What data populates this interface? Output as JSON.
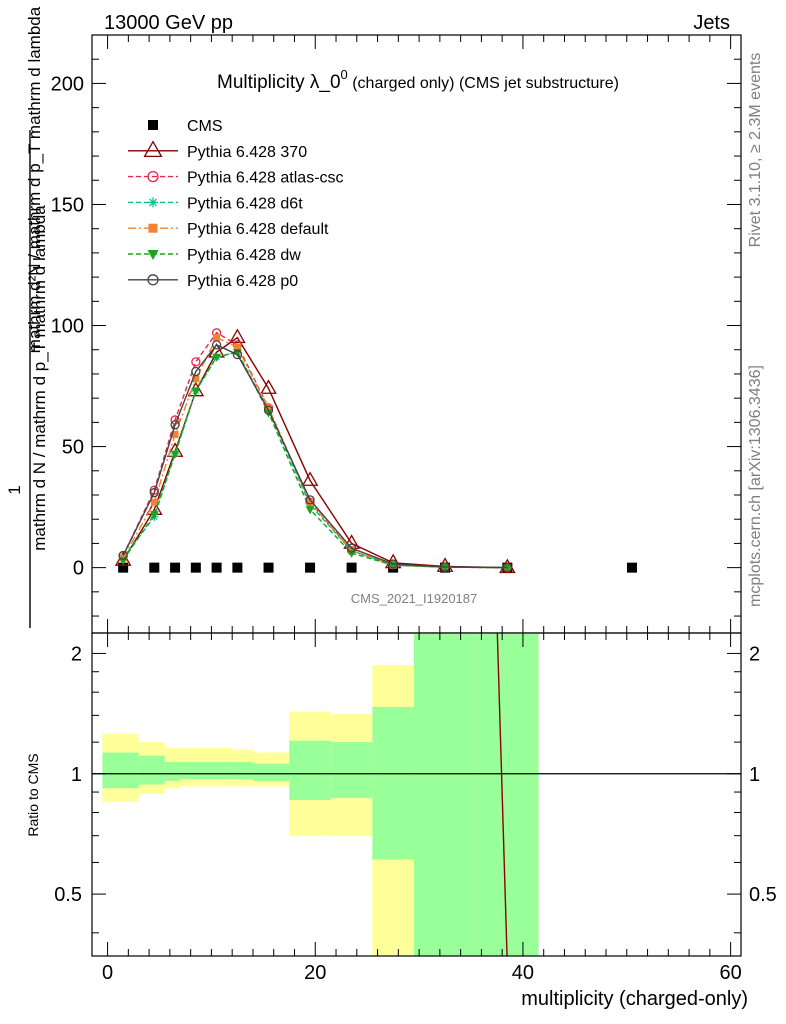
{
  "header": {
    "left": "13000 GeV pp",
    "right": "Jets"
  },
  "side_labels": {
    "rivet": "Rivet 3.1.10, ≥ 2.3M events",
    "mcplots": "mcplots.cern.ch [arXiv:1306.3436]"
  },
  "chart_data": [
    {
      "type": "line",
      "title": "Multiplicity λ_0⁰ (charged only) (CMS jet substructure)",
      "title_main": "Multiplicity λ_0",
      "title_sup": "0",
      "title_rest": " (charged only) (CMS jet substructure)",
      "analysis_label": "CMS_2021_I1920187",
      "xlabel": "multiplicity (charged-only)",
      "ylabel_numerator": "1",
      "ylabel_denominator": "mathrm d N / mathrm d p_T mathrm d lambda",
      "ylabel_inner": "mathrm d²N / mathrm d p_T mathrm d lambda",
      "ylabel_full": "(1 / mathrm d N / mathrm d p_T mathrm d lambda) · mathrm d²N / mathrm d p_T mathrm d lambda",
      "xlim": [
        -1.5,
        61
      ],
      "ylim": [
        -27,
        220
      ],
      "xticks": [
        0,
        20,
        40,
        60
      ],
      "yticks": [
        0,
        50,
        100,
        150,
        200
      ],
      "legend_position": "top-left",
      "series": [
        {
          "name": "CMS",
          "style": "data",
          "color": "#000000",
          "marker": "filled-square",
          "x": [
            1.5,
            4.5,
            6.5,
            8.5,
            10.5,
            12.5,
            15.5,
            19.5,
            23.5,
            27.5,
            32.5,
            38.5,
            50.5
          ],
          "y": [
            0,
            0,
            0,
            0,
            0,
            0,
            0,
            0,
            0,
            0,
            0,
            0,
            0
          ]
        },
        {
          "name": "Pythia 6.428 370",
          "color": "#8b0000",
          "dash": "solid",
          "marker": "open-triangle",
          "x": [
            1.5,
            4.5,
            6.5,
            8.5,
            10.5,
            12.5,
            15.5,
            19.5,
            23.5,
            27.5,
            32.5,
            38.5
          ],
          "y": [
            3,
            24,
            48,
            73,
            89,
            95,
            74,
            36,
            10,
            2,
            0.5,
            0
          ]
        },
        {
          "name": "Pythia 6.428 atlas-csc",
          "color": "#e8264e",
          "dash": "dashed",
          "marker": "open-circle",
          "x": [
            1.5,
            4.5,
            6.5,
            8.5,
            10.5,
            12.5,
            15.5,
            19.5,
            23.5,
            27.5,
            32.5,
            38.5
          ],
          "y": [
            5,
            32,
            61,
            85,
            97,
            92,
            66,
            27,
            7,
            1.2,
            0.2,
            0
          ]
        },
        {
          "name": "Pythia 6.428 d6t",
          "color": "#00c08f",
          "dash": "dashed",
          "marker": "asterisk",
          "x": [
            1.5,
            4.5,
            6.5,
            8.5,
            10.5,
            12.5,
            15.5,
            19.5,
            23.5,
            27.5,
            32.5,
            38.5
          ],
          "y": [
            4,
            21,
            47,
            73,
            87,
            89,
            65,
            26,
            7,
            1,
            0.2,
            0
          ]
        },
        {
          "name": "Pythia 6.428 default",
          "color": "#f58231",
          "dash": "dashdot",
          "marker": "filled-square",
          "x": [
            1.5,
            4.5,
            6.5,
            8.5,
            10.5,
            12.5,
            15.5,
            19.5,
            23.5,
            27.5,
            32.5,
            38.5
          ],
          "y": [
            4,
            27,
            55,
            78,
            95,
            91,
            66,
            27,
            7,
            1,
            0.2,
            0
          ]
        },
        {
          "name": "Pythia 6.428 dw",
          "color": "#1aa51a",
          "dash": "dashed",
          "marker": "filled-triangle-down",
          "x": [
            1.5,
            4.5,
            6.5,
            8.5,
            10.5,
            12.5,
            15.5,
            19.5,
            23.5,
            27.5,
            32.5,
            38.5
          ],
          "y": [
            3,
            22,
            47,
            73,
            87,
            89,
            64,
            24,
            6,
            1,
            0.2,
            0
          ]
        },
        {
          "name": "Pythia 6.428 p0",
          "color": "#444444",
          "dash": "solid",
          "marker": "open-circle",
          "x": [
            1.5,
            4.5,
            6.5,
            8.5,
            10.5,
            12.5,
            15.5,
            19.5,
            23.5,
            27.5,
            32.5,
            38.5
          ],
          "y": [
            5,
            31,
            59,
            81,
            92,
            88,
            65,
            28,
            8,
            1.5,
            0.3,
            0
          ]
        }
      ]
    },
    {
      "type": "area",
      "ylabel": "Ratio to CMS",
      "xlim": [
        -1.5,
        61
      ],
      "ylim": [
        0.35,
        2.25
      ],
      "yscale": "log",
      "xticks": [
        0,
        20,
        40,
        60
      ],
      "yticks": [
        0.5,
        1,
        2
      ],
      "reference_line": 1,
      "bands": {
        "bins_lo": [
          -0.5,
          3,
          5.5,
          7,
          12,
          14,
          17.5,
          21.5,
          25.5,
          29.5,
          35.5
        ],
        "bins_hi": [
          3,
          5.5,
          7,
          12,
          14,
          17.5,
          21.5,
          25.5,
          29.5,
          35.5,
          41.5
        ],
        "syst_lo": [
          0.85,
          0.89,
          0.92,
          0.93,
          0.93,
          0.93,
          0.7,
          0.7,
          0.35,
          0.35,
          0.35
        ],
        "syst_hi": [
          1.26,
          1.2,
          1.16,
          1.16,
          1.15,
          1.13,
          1.43,
          1.41,
          1.87,
          3.0,
          3.0
        ],
        "stat_lo": [
          0.92,
          0.94,
          0.96,
          0.97,
          0.97,
          0.96,
          0.86,
          0.87,
          0.61,
          0.35,
          0.35
        ],
        "stat_hi": [
          1.13,
          1.11,
          1.07,
          1.07,
          1.07,
          1.06,
          1.21,
          1.2,
          1.47,
          3.0,
          3.0
        ]
      },
      "ratio_line": {
        "color": "#8b0000",
        "x": [
          37.5,
          38.5
        ],
        "y": [
          2.4,
          0.33
        ]
      }
    }
  ]
}
